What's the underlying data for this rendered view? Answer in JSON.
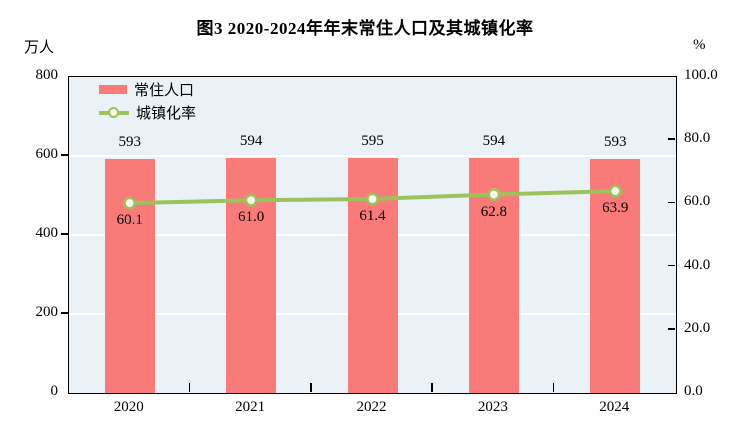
{
  "title": "图3  2020-2024年年末常住人口及其城镇化率",
  "left_axis_unit": "万人",
  "right_axis_unit": "%",
  "legend": {
    "items": [
      {
        "label": "常住人口",
        "marker": "bar-swatch"
      },
      {
        "label": "城镇化率",
        "marker": "line-circle-marker"
      }
    ]
  },
  "colors": {
    "bar": "#FA7A7A",
    "line": "#9CC35B",
    "marker_fill": "#FDFDF2",
    "plot_background": "#EAF2F8",
    "gridline": "#FFFFFF",
    "axis": "#000000",
    "text": "#000000"
  },
  "chart_data": {
    "type": "bar",
    "combo": "bar+line",
    "title": "图3  2020-2024年年末常住人口及其城镇化率",
    "categories": [
      "2020",
      "2021",
      "2022",
      "2023",
      "2024"
    ],
    "series": [
      {
        "name": "常住人口",
        "type": "bar",
        "axis": "left",
        "values": [
          593,
          594,
          595,
          594,
          593
        ]
      },
      {
        "name": "城镇化率",
        "type": "line",
        "axis": "right",
        "values": [
          60.1,
          61.0,
          61.4,
          62.8,
          63.9
        ]
      }
    ],
    "left_axis": {
      "label": "万人",
      "range": [
        0,
        800
      ],
      "ticks": [
        0,
        200,
        400,
        600,
        800
      ]
    },
    "right_axis": {
      "label": "%",
      "range": [
        0,
        100
      ],
      "tick_values": [
        0,
        20,
        40,
        60,
        80,
        100
      ],
      "tick_labels": [
        "0.0",
        "20.0",
        "40.0",
        "60.0",
        "80.0",
        "100.0"
      ]
    },
    "gridlines": {
      "horizontal_at_left_values": [
        200,
        400,
        600
      ]
    },
    "legend_position": "top-left-inside",
    "data_labels": {
      "bar": [
        "593",
        "594",
        "595",
        "594",
        "593"
      ],
      "line": [
        "60.1",
        "61.0",
        "61.4",
        "62.8",
        "63.9"
      ]
    }
  }
}
